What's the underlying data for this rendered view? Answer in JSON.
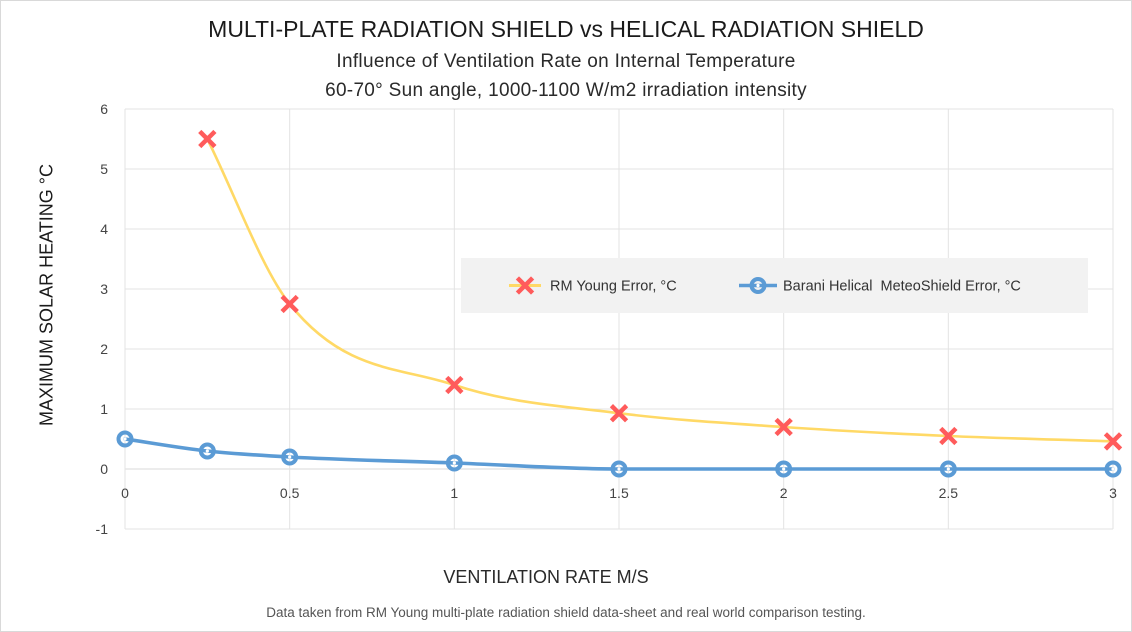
{
  "chart_data": {
    "type": "line",
    "title": "MULTI-PLATE RADIATION SHIELD vs HELICAL RADIATION SHIELD",
    "subtitle": "Influence of Ventilation Rate on Internal Temperature",
    "subtitle2": "60-70° Sun angle, 1000-1100 W/m2 irradiation intensity",
    "xlabel": "VENTILATION RATE M/S",
    "ylabel": "MAXIMUM SOLAR HEATING °C",
    "footnote": "Data taken from RM Young multi-plate radiation shield data-sheet and real world comparison testing.",
    "xlim": [
      0,
      3
    ],
    "ylim": [
      -1,
      6
    ],
    "x_ticks": [
      "0",
      "0.5",
      "1",
      "1.5",
      "2",
      "2.5",
      "3"
    ],
    "y_ticks": [
      "-1",
      "0",
      "1",
      "2",
      "3",
      "4",
      "5",
      "6"
    ],
    "grid": true,
    "legend_position": "center-right",
    "series": [
      {
        "name": "RM Young Error, °C",
        "color": "#ffd966",
        "marker_color": "#ff5b5b",
        "marker": "x",
        "x": [
          0.25,
          0.5,
          1,
          1.5,
          2,
          2.5,
          3
        ],
        "values": [
          5.5,
          2.75,
          1.4,
          0.93,
          0.7,
          0.55,
          0.46
        ]
      },
      {
        "name": "Barani Helical  MeteoShield Error, °C",
        "color": "#5b9bd5",
        "marker_color": "#5b9bd5",
        "marker": "circle",
        "x": [
          0,
          0.25,
          0.5,
          1,
          1.5,
          2,
          2.5,
          3
        ],
        "values": [
          0.5,
          0.3,
          0.2,
          0.1,
          0,
          0,
          0,
          0
        ]
      }
    ]
  }
}
